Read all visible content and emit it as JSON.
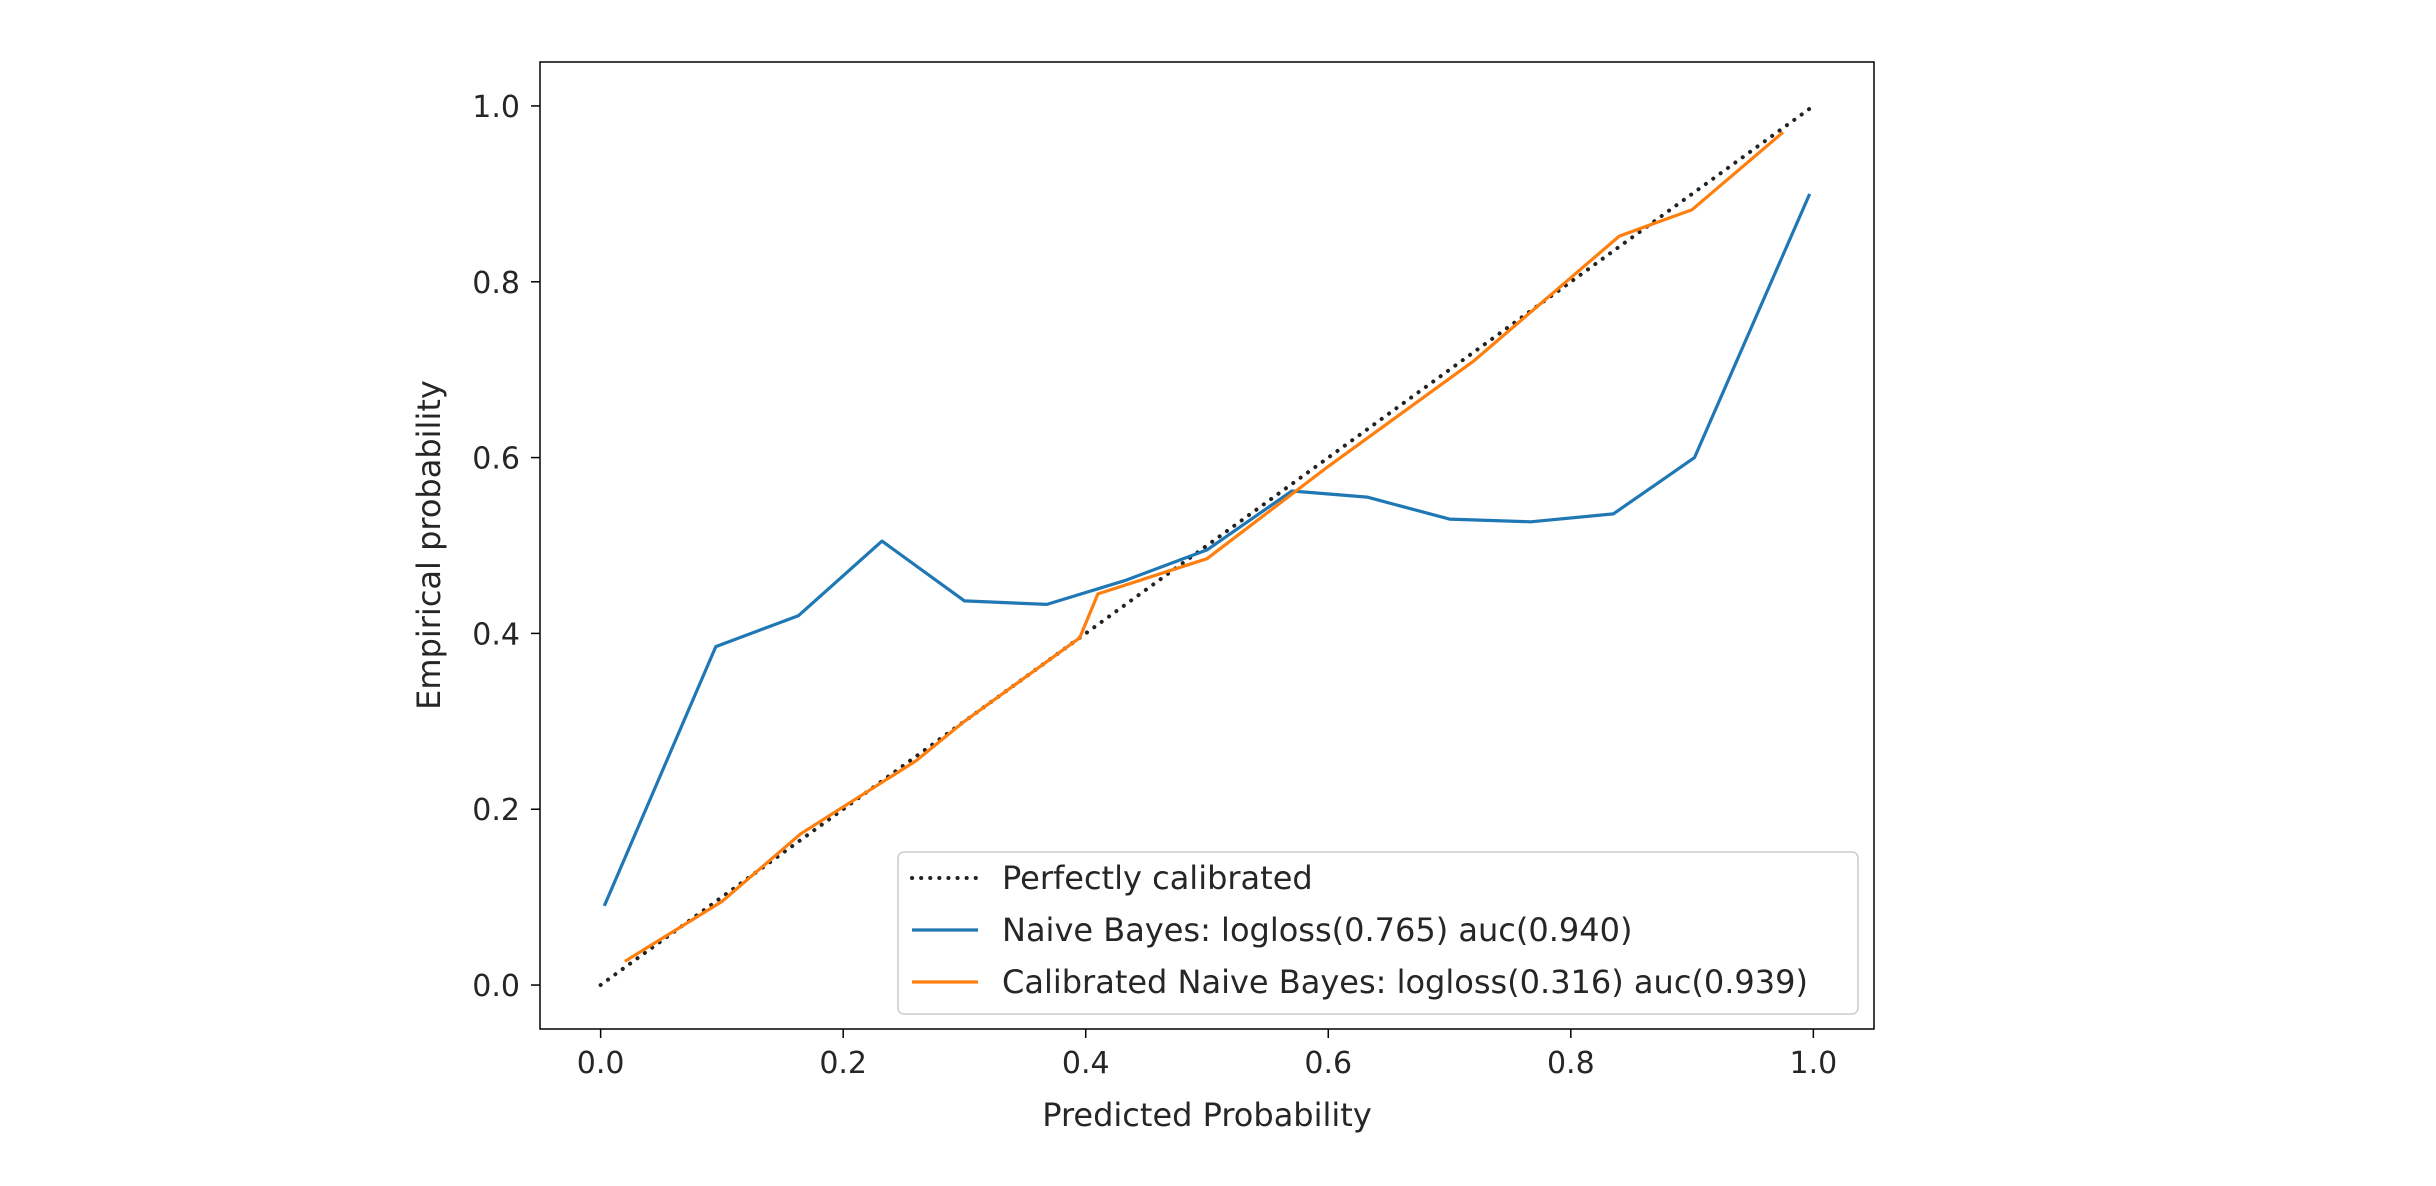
{
  "chart_data": {
    "type": "line",
    "title": "",
    "xlabel": "Predicted Probability",
    "ylabel": "Empirical probability",
    "xlim": [
      -0.05,
      1.05
    ],
    "ylim": [
      -0.05,
      1.05
    ],
    "xticks": [
      "0.0",
      "0.2",
      "0.4",
      "0.6",
      "0.8",
      "1.0"
    ],
    "yticks": [
      "0.0",
      "0.2",
      "0.4",
      "0.6",
      "0.8",
      "1.0"
    ],
    "xtick_values": [
      0.0,
      0.2,
      0.4,
      0.6,
      0.8,
      1.0
    ],
    "ytick_values": [
      0.0,
      0.2,
      0.4,
      0.6,
      0.8,
      1.0
    ],
    "grid": false,
    "legend_position": "lower-right",
    "series": [
      {
        "name": "Perfectly calibrated",
        "color": "#000000",
        "style": "dotted",
        "x": [
          0.0,
          1.0
        ],
        "y": [
          0.0,
          1.0
        ]
      },
      {
        "name": "Naive Bayes: logloss(0.765) auc(0.940)",
        "color": "#1f77b4",
        "style": "solid",
        "x": [
          0.003,
          0.095,
          0.163,
          0.232,
          0.3,
          0.368,
          0.432,
          0.5,
          0.57,
          0.632,
          0.7,
          0.767,
          0.835,
          0.902,
          0.997
        ],
        "y": [
          0.09,
          0.385,
          0.42,
          0.505,
          0.437,
          0.433,
          0.46,
          0.495,
          0.562,
          0.555,
          0.53,
          0.527,
          0.536,
          0.6,
          0.9
        ]
      },
      {
        "name": "Calibrated Naive Bayes: logloss(0.316) auc(0.939)",
        "color": "#ff7f0e",
        "style": "solid",
        "x": [
          0.02,
          0.1,
          0.165,
          0.26,
          0.3,
          0.395,
          0.41,
          0.5,
          0.6,
          0.72,
          0.84,
          0.9,
          0.975
        ],
        "y": [
          0.027,
          0.095,
          0.172,
          0.255,
          0.3,
          0.395,
          0.445,
          0.485,
          0.59,
          0.71,
          0.852,
          0.882,
          0.97
        ]
      }
    ]
  }
}
